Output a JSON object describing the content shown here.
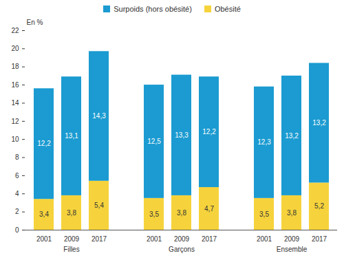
{
  "chart_data": {
    "type": "bar",
    "stacked": true,
    "data_labels": true,
    "grid": false,
    "legend": "top",
    "y_label": "En %",
    "groups": [
      "Filles",
      "Filles",
      "Filles",
      "Garçons",
      "Garçons",
      "Garçons",
      "Ensemble",
      "Ensemble",
      "Ensemble"
    ],
    "categories": [
      "2001",
      "2009",
      "2017",
      "2001",
      "2009",
      "2017",
      "2001",
      "2009",
      "2017"
    ],
    "series": [
      {
        "name": "Surpoids (hors obésité)",
        "color": "#1b9bd1",
        "values": [
          12.2,
          13.1,
          14.3,
          12.5,
          13.3,
          12.2,
          12.3,
          13.2,
          13.2
        ],
        "value_labels": [
          "12,2",
          "13,1",
          "14,3",
          "12,5",
          "13,3",
          "12,2",
          "12,3",
          "13,2",
          "13,2"
        ]
      },
      {
        "name": "Obésité",
        "color": "#f6d33c",
        "values": [
          3.4,
          3.8,
          5.4,
          3.5,
          3.8,
          4.7,
          3.5,
          3.8,
          5.2
        ],
        "value_labels": [
          "3,4",
          "3,8",
          "5,4",
          "3,5",
          "3,8",
          "4,7",
          "3,5",
          "3,8",
          "5,2"
        ]
      }
    ],
    "ylim": [
      0,
      22
    ],
    "yticks": [
      0,
      2,
      4,
      6,
      8,
      10,
      12,
      14,
      16,
      18,
      20,
      22
    ]
  }
}
